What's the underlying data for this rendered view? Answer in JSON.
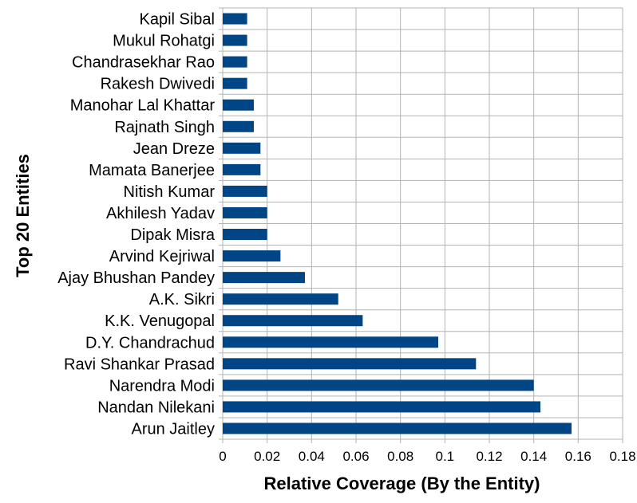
{
  "chart_data": {
    "type": "bar",
    "orientation": "horizontal",
    "xlabel": "Relative Coverage (By the Entity)",
    "ylabel": "Top 20 Entities",
    "xlim": [
      0,
      0.18
    ],
    "x_ticks": [
      "0",
      "0.02",
      "0.04",
      "0.06",
      "0.08",
      "0.1",
      "0.12",
      "0.14",
      "0.16",
      "0.18"
    ],
    "x_tick_values": [
      0,
      0.02,
      0.04,
      0.06,
      0.08,
      0.1,
      0.12,
      0.14,
      0.16,
      0.18
    ],
    "grid": true,
    "bar_color": "#004586",
    "categories": [
      "Arun Jaitley",
      "Nandan Nilekani",
      "Narendra Modi",
      "Ravi Shankar Prasad",
      "D.Y. Chandrachud",
      "K.K. Venugopal",
      "A.K. Sikri",
      "Ajay Bhushan Pandey",
      "Arvind Kejriwal",
      "Dipak Misra",
      "Akhilesh Yadav",
      "Nitish Kumar",
      "Mamata Banerjee",
      "Jean Dreze",
      "Rajnath Singh",
      "Manohar Lal Khattar",
      "Rakesh Dwivedi",
      "Chandrasekhar Rao",
      "Mukul Rohatgi",
      "Kapil Sibal"
    ],
    "values": [
      0.157,
      0.143,
      0.14,
      0.114,
      0.097,
      0.063,
      0.052,
      0.037,
      0.026,
      0.02,
      0.02,
      0.02,
      0.017,
      0.017,
      0.014,
      0.014,
      0.011,
      0.011,
      0.011,
      0.011
    ]
  }
}
